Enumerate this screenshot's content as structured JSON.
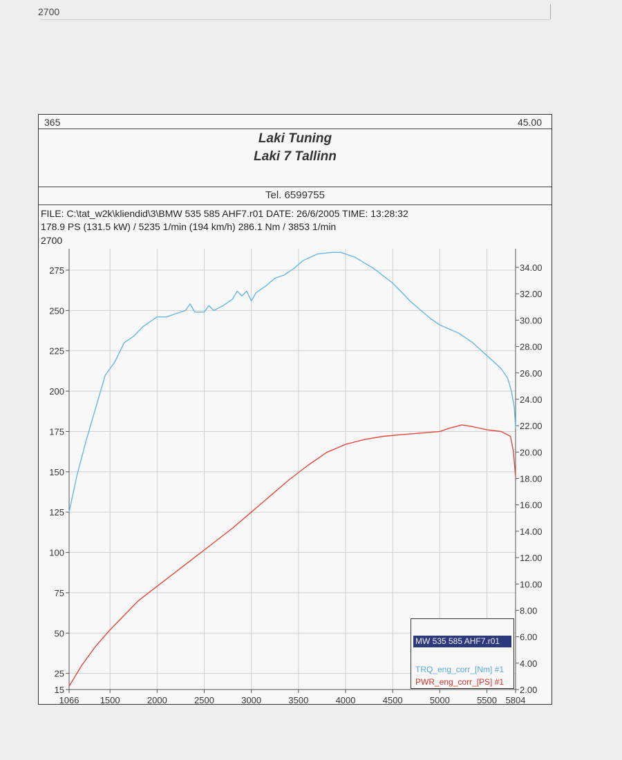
{
  "page": {
    "top_label": "2700"
  },
  "header": {
    "left_value": "365",
    "right_value": "45.00",
    "company_line1": "Laki Tuning",
    "company_line2": "Laki 7 Tallinn",
    "phone": "Tel. 6599755"
  },
  "info": {
    "line1": "FILE: C:\\tat_w2k\\kliendid\\3\\BMW 535 585 AHF7.r01  DATE: 26/6/2005  TIME: 13:28:32",
    "line2": "178.9 PS  (131.5 kW) / 5235 1/min (194 km/h)    286.1 Nm / 3853 1/min",
    "line3": "2700"
  },
  "legend": {
    "file": "MW 535 585 AHF7.r01",
    "trq_label": "TRQ_eng_corr_[Nm] #1",
    "pwr_label": "PWR_eng_corr_[PS] #1"
  },
  "colors": {
    "torque": "#66b8e4",
    "power": "#e3473c",
    "grid": "#cfcfcf",
    "axis": "#555555"
  },
  "chart_data": {
    "type": "line",
    "x": {
      "label": "",
      "min": 1066,
      "max": 5804,
      "ticks": [
        1066,
        1500,
        2000,
        2500,
        3000,
        3500,
        4000,
        4500,
        5000,
        5500,
        5804
      ],
      "tick_labels": [
        "1066",
        "1500",
        "2000",
        "2500",
        "3000",
        "3500",
        "4000",
        "4500",
        "5000",
        "5500",
        "5804"
      ]
    },
    "y_left": {
      "min": 15,
      "max": 275,
      "ticks": [
        15,
        25,
        50,
        75,
        100,
        125,
        150,
        175,
        200,
        225,
        250,
        275
      ],
      "tick_labels": [
        "15",
        "25",
        "50",
        "75",
        "100",
        "125",
        "150",
        "175",
        "200",
        "225",
        "250",
        "275"
      ]
    },
    "y_right": {
      "min": 2,
      "max": 34,
      "ticks": [
        2,
        4,
        6,
        8,
        10,
        12,
        14,
        16,
        18,
        20,
        22,
        24,
        26,
        28,
        30,
        32,
        34
      ],
      "tick_labels": [
        "2.00",
        "4.00",
        "6.00",
        "8.00",
        "10.00",
        "12.00",
        "14.00",
        "16.00",
        "18.00",
        "20.00",
        "22.00",
        "24.00",
        "26.00",
        "28.00",
        "30.00",
        "32.00",
        "34.00"
      ]
    },
    "grid": true,
    "legend_position": "bottom-right",
    "series": [
      {
        "name": "TRQ_eng_corr_[Nm] #1",
        "color": "#66b8e4",
        "points": [
          [
            1066,
            125
          ],
          [
            1150,
            148
          ],
          [
            1250,
            170
          ],
          [
            1350,
            190
          ],
          [
            1450,
            210
          ],
          [
            1550,
            218
          ],
          [
            1650,
            230
          ],
          [
            1750,
            234
          ],
          [
            1850,
            240
          ],
          [
            2000,
            246
          ],
          [
            2100,
            246
          ],
          [
            2200,
            248
          ],
          [
            2300,
            250
          ],
          [
            2350,
            254
          ],
          [
            2400,
            249
          ],
          [
            2500,
            249
          ],
          [
            2550,
            253
          ],
          [
            2600,
            250
          ],
          [
            2700,
            253
          ],
          [
            2800,
            257
          ],
          [
            2850,
            262
          ],
          [
            2900,
            259
          ],
          [
            2950,
            262
          ],
          [
            3000,
            256
          ],
          [
            3050,
            261
          ],
          [
            3150,
            265
          ],
          [
            3250,
            270
          ],
          [
            3350,
            272
          ],
          [
            3450,
            276
          ],
          [
            3550,
            281
          ],
          [
            3700,
            285
          ],
          [
            3850,
            286
          ],
          [
            3950,
            286
          ],
          [
            4100,
            283
          ],
          [
            4300,
            276
          ],
          [
            4500,
            267
          ],
          [
            4700,
            255
          ],
          [
            4900,
            245
          ],
          [
            5000,
            241
          ],
          [
            5200,
            236
          ],
          [
            5350,
            230
          ],
          [
            5500,
            222
          ],
          [
            5650,
            214
          ],
          [
            5720,
            208
          ],
          [
            5760,
            200
          ],
          [
            5790,
            190
          ],
          [
            5804,
            177
          ]
        ]
      },
      {
        "name": "PWR_eng_corr_[PS] #1",
        "color": "#e3473c",
        "points": [
          [
            1066,
            17
          ],
          [
            1200,
            30
          ],
          [
            1350,
            42
          ],
          [
            1500,
            52
          ],
          [
            1650,
            61
          ],
          [
            1800,
            70
          ],
          [
            2000,
            79
          ],
          [
            2200,
            88
          ],
          [
            2400,
            97
          ],
          [
            2600,
            106
          ],
          [
            2800,
            115
          ],
          [
            3000,
            125
          ],
          [
            3200,
            135
          ],
          [
            3400,
            145
          ],
          [
            3600,
            154
          ],
          [
            3800,
            162
          ],
          [
            4000,
            167
          ],
          [
            4200,
            170
          ],
          [
            4400,
            172
          ],
          [
            4600,
            173
          ],
          [
            4800,
            174
          ],
          [
            5000,
            175
          ],
          [
            5100,
            177
          ],
          [
            5235,
            179
          ],
          [
            5350,
            178
          ],
          [
            5500,
            176
          ],
          [
            5650,
            175
          ],
          [
            5750,
            172
          ],
          [
            5780,
            163
          ],
          [
            5804,
            147
          ]
        ]
      }
    ]
  }
}
